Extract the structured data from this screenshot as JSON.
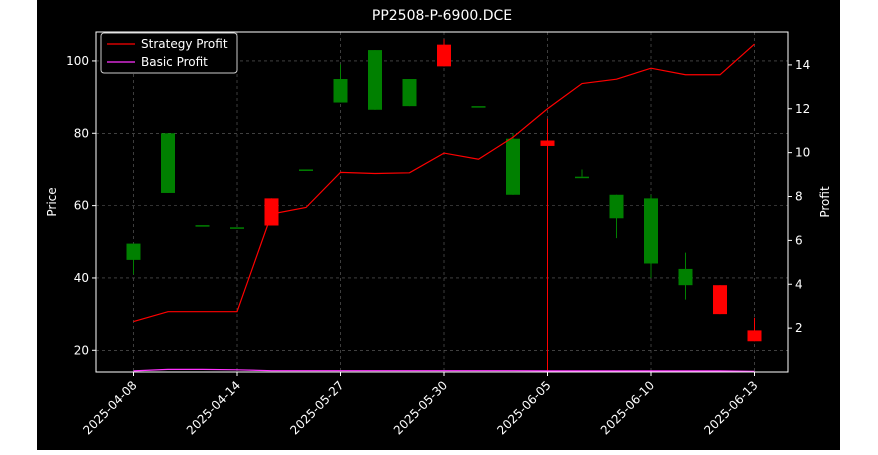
{
  "chart_data": {
    "type": "candlestick+line",
    "title": "PP2508-P-6900.DCE",
    "ylabel_left": "Price",
    "ylabel_right": "Profit",
    "ylim_left": [
      14,
      108
    ],
    "ylim_right": [
      0,
      15.5
    ],
    "yticks_left": [
      20,
      40,
      60,
      80,
      100
    ],
    "yticks_right": [
      2,
      4,
      6,
      8,
      10,
      12,
      14
    ],
    "xtick_labels": [
      "2025-04-08",
      "2025-04-14",
      "2025-05-27",
      "2025-05-30",
      "2025-06-05",
      "2025-06-10",
      "2025-06-13"
    ],
    "xtick_indices": [
      0,
      3,
      6,
      9,
      12,
      15,
      18
    ],
    "grid": true,
    "legend_position": "top-left",
    "candles": [
      {
        "i": 0,
        "open": 45,
        "close": 49.5,
        "high": 49.5,
        "low": 41
      },
      {
        "i": 1,
        "open": 63.5,
        "close": 80,
        "high": 80,
        "low": 63.5
      },
      {
        "i": 2,
        "open": 54.6,
        "close": 54.6,
        "high": 54.6,
        "low": 54.6
      },
      {
        "i": 3,
        "open": 54,
        "close": 54,
        "high": 54,
        "low": 54
      },
      {
        "i": 4,
        "open": 62,
        "close": 54.5,
        "high": 62,
        "low": 54.5
      },
      {
        "i": 5,
        "open": 70,
        "close": 70,
        "high": 70,
        "low": 70
      },
      {
        "i": 6,
        "open": 88.5,
        "close": 95,
        "high": 99,
        "low": 88.5
      },
      {
        "i": 7,
        "open": 86.5,
        "close": 103,
        "high": 103,
        "low": 86.5
      },
      {
        "i": 8,
        "open": 87.5,
        "close": 95,
        "high": 95,
        "low": 87.5
      },
      {
        "i": 9,
        "open": 104.5,
        "close": 98.5,
        "high": 106,
        "low": 98.5
      },
      {
        "i": 10,
        "open": 87.5,
        "close": 87.5,
        "high": 87.5,
        "low": 87.5
      },
      {
        "i": 11,
        "open": 63,
        "close": 78.5,
        "high": 80,
        "low": 63
      },
      {
        "i": 12,
        "open": 78,
        "close": 76.5,
        "high": 84,
        "low": 14
      },
      {
        "i": 13,
        "open": 68,
        "close": 68,
        "high": 70,
        "low": 68
      },
      {
        "i": 14,
        "open": 56.5,
        "close": 63,
        "high": 63,
        "low": 51
      },
      {
        "i": 15,
        "open": 44,
        "close": 62,
        "high": 63,
        "low": 40
      },
      {
        "i": 16,
        "open": 38,
        "close": 42.5,
        "high": 47,
        "low": 34
      },
      {
        "i": 17,
        "open": 38,
        "close": 30,
        "high": 38,
        "low": 30
      },
      {
        "i": 18,
        "open": 25.5,
        "close": 22.5,
        "high": 29,
        "low": 22.5
      }
    ],
    "series": [
      {
        "name": "Strategy Profit",
        "color": "#ff0000",
        "values": [
          2.3,
          2.75,
          2.75,
          2.75,
          7.2,
          7.5,
          9.1,
          9.05,
          9.08,
          9.98,
          9.7,
          10.7,
          12.0,
          13.15,
          13.35,
          13.85,
          13.55,
          13.55,
          14.95
        ]
      },
      {
        "name": "Basic Profit",
        "color": "#ff33ff",
        "values": [
          0.05,
          0.12,
          0.12,
          0.1,
          0.06,
          0.06,
          0.06,
          0.06,
          0.06,
          0.06,
          0.06,
          0.06,
          0.05,
          0.05,
          0.05,
          0.05,
          0.05,
          0.05,
          0.03
        ]
      }
    ],
    "colors": {
      "up": "#008000",
      "down": "#ff0000",
      "background": "#000000",
      "axis": "#ffffff",
      "grid": "#666666"
    }
  }
}
